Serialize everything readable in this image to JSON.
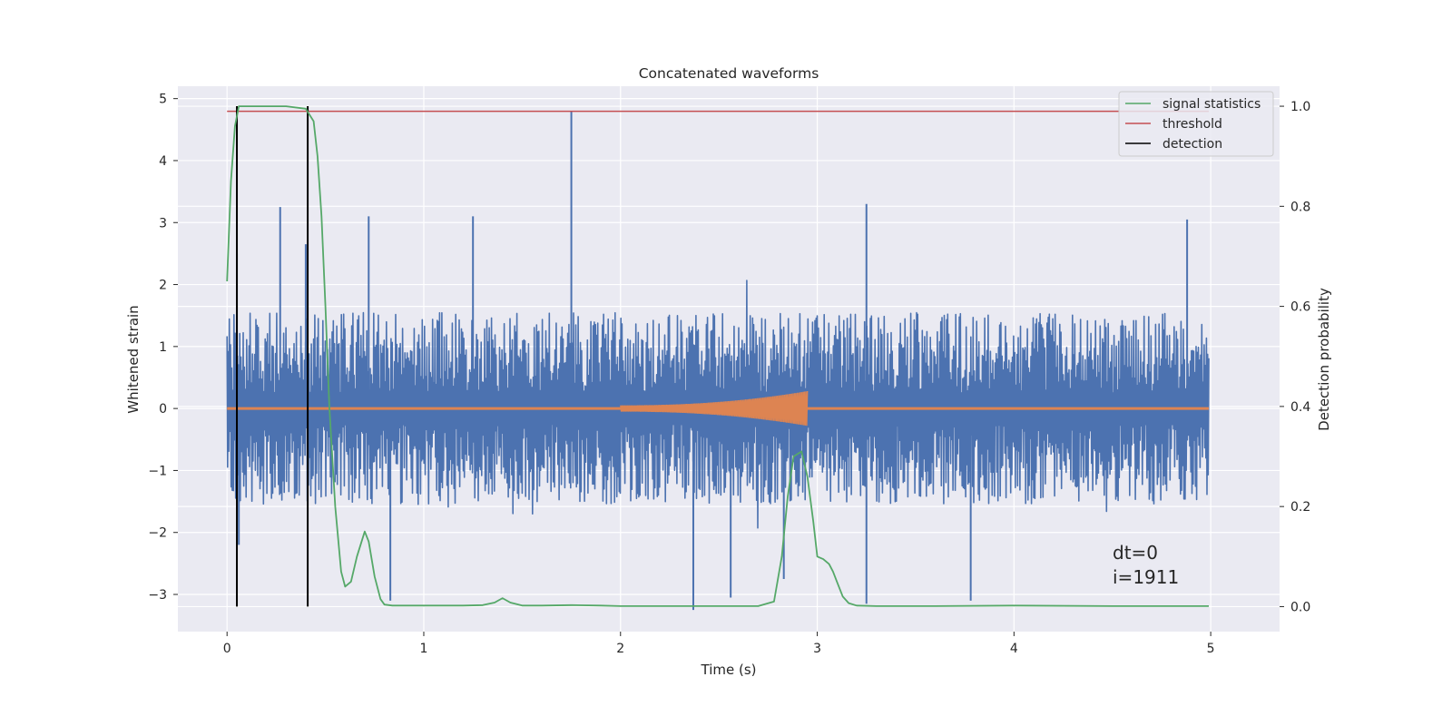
{
  "chart_data": {
    "type": "line",
    "title": "Concatenated waveforms",
    "xlabel": "Time (s)",
    "ylabel_left": "Whitened strain",
    "ylabel_right": "Detection probability",
    "xlim": [
      -0.25,
      5.35
    ],
    "ylim_left": [
      -3.6,
      5.2
    ],
    "ylim_right": [
      -0.05,
      1.04
    ],
    "x_ticks": [
      "0",
      "1",
      "2",
      "3",
      "4",
      "5"
    ],
    "x_tick_values": [
      0,
      1,
      2,
      3,
      4,
      5
    ],
    "y_left_ticks": [
      "−3",
      "−2",
      "−1",
      "0",
      "1",
      "2",
      "3",
      "4",
      "5"
    ],
    "y_left_tick_values": [
      -3,
      -2,
      -1,
      0,
      1,
      2,
      3,
      4,
      5
    ],
    "y_right_ticks": [
      "0.0",
      "0.2",
      "0.4",
      "0.6",
      "0.8",
      "1.0"
    ],
    "y_right_tick_values": [
      0.0,
      0.2,
      0.4,
      0.6,
      0.8,
      1.0
    ],
    "grid": true,
    "legend_position": "top-right",
    "legend": [
      "signal statistics",
      "threshold",
      "detection"
    ],
    "series": [
      {
        "name": "signal statistics",
        "axis": "right",
        "color": "#55a868",
        "x": [
          0.0,
          0.02,
          0.04,
          0.06,
          0.1,
          0.2,
          0.3,
          0.4,
          0.44,
          0.46,
          0.48,
          0.5,
          0.52,
          0.55,
          0.58,
          0.6,
          0.63,
          0.66,
          0.7,
          0.72,
          0.75,
          0.78,
          0.8,
          0.84,
          0.9,
          1.0,
          1.2,
          1.3,
          1.36,
          1.4,
          1.44,
          1.5,
          1.6,
          1.75,
          1.9,
          2.0,
          2.4,
          2.7,
          2.78,
          2.82,
          2.85,
          2.88,
          2.92,
          2.95,
          2.98,
          3.0,
          3.03,
          3.06,
          3.08,
          3.1,
          3.13,
          3.16,
          3.2,
          3.3,
          3.6,
          4.0,
          4.5,
          4.99
        ],
        "y": [
          0.65,
          0.85,
          0.96,
          1.0,
          1.0,
          1.0,
          1.0,
          0.995,
          0.97,
          0.9,
          0.78,
          0.6,
          0.4,
          0.2,
          0.07,
          0.04,
          0.05,
          0.1,
          0.15,
          0.13,
          0.06,
          0.015,
          0.004,
          0.002,
          0.002,
          0.002,
          0.002,
          0.003,
          0.008,
          0.017,
          0.008,
          0.002,
          0.002,
          0.003,
          0.002,
          0.001,
          0.001,
          0.001,
          0.01,
          0.1,
          0.22,
          0.3,
          0.31,
          0.26,
          0.17,
          0.1,
          0.095,
          0.085,
          0.07,
          0.05,
          0.02,
          0.007,
          0.002,
          0.001,
          0.001,
          0.002,
          0.001,
          0.001
        ]
      },
      {
        "name": "threshold",
        "axis": "right",
        "color": "#c44e52",
        "x": [
          0.0,
          4.99
        ],
        "y": [
          0.99,
          0.99
        ]
      },
      {
        "name": "detection",
        "axis": "right",
        "color": "#000000",
        "x": [
          0.05,
          0.41
        ],
        "y_range": [
          0.0,
          1.0
        ]
      },
      {
        "axis": "left",
        "color": "#4c72b0",
        "x_range": [
          0.0,
          4.99
        ],
        "envelope_typical": [
          -1.6,
          1.7
        ],
        "peaks": [
          {
            "x": 0.05,
            "y": 2.5
          },
          {
            "x": 0.06,
            "y": -2.2
          },
          {
            "x": 0.27,
            "y": 3.25
          },
          {
            "x": 0.4,
            "y": 2.65
          },
          {
            "x": 0.72,
            "y": 3.1
          },
          {
            "x": 0.83,
            "y": -3.1
          },
          {
            "x": 1.25,
            "y": 3.1
          },
          {
            "x": 1.75,
            "y": 4.8
          },
          {
            "x": 2.37,
            "y": -3.25
          },
          {
            "x": 2.56,
            "y": -3.05
          },
          {
            "x": 2.83,
            "y": -2.75
          },
          {
            "x": 3.25,
            "y": 3.3
          },
          {
            "x": 3.25,
            "y": -3.15
          },
          {
            "x": 3.78,
            "y": -3.1
          },
          {
            "x": 4.88,
            "y": 3.05
          }
        ]
      },
      {
        "axis": "left",
        "color": "#dd8452",
        "chirp": {
          "x_start": 2.0,
          "x_end": 2.95,
          "amp_start": 0.05,
          "amp_end": 0.28
        }
      }
    ],
    "annotations": [
      "dt=0",
      "i=1911"
    ]
  }
}
